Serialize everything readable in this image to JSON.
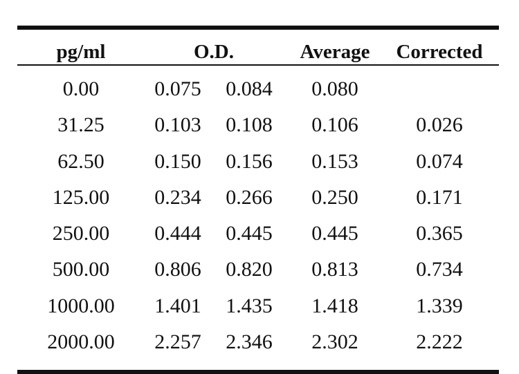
{
  "table": {
    "headers": {
      "concentration": "pg/ml",
      "od": "O.D.",
      "average": "Average",
      "corrected": "Corrected"
    },
    "rows": [
      {
        "pg": "0.00",
        "od1": "0.075",
        "od2": "0.084",
        "avg": "0.080",
        "corrected": ""
      },
      {
        "pg": "31.25",
        "od1": "0.103",
        "od2": "0.108",
        "avg": "0.106",
        "corrected": "0.026"
      },
      {
        "pg": "62.50",
        "od1": "0.150",
        "od2": "0.156",
        "avg": "0.153",
        "corrected": "0.074"
      },
      {
        "pg": "125.00",
        "od1": "0.234",
        "od2": "0.266",
        "avg": "0.250",
        "corrected": "0.171"
      },
      {
        "pg": "250.00",
        "od1": "0.444",
        "od2": "0.445",
        "avg": "0.445",
        "corrected": "0.365"
      },
      {
        "pg": "500.00",
        "od1": "0.806",
        "od2": "0.820",
        "avg": "0.813",
        "corrected": "0.734"
      },
      {
        "pg": "1000.00",
        "od1": "1.401",
        "od2": "1.435",
        "avg": "1.418",
        "corrected": "1.339"
      },
      {
        "pg": "2000.00",
        "od1": "2.257",
        "od2": "2.346",
        "avg": "2.302",
        "corrected": "2.222"
      }
    ]
  }
}
